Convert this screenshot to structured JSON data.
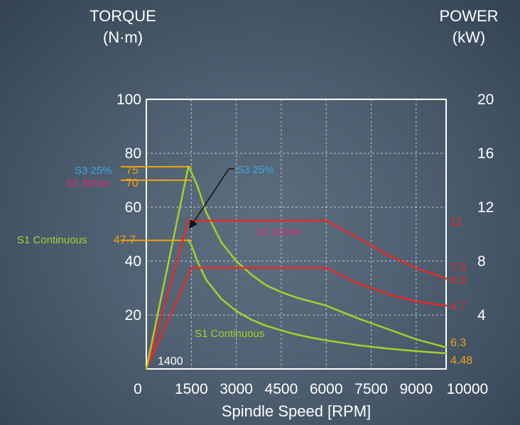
{
  "colors": {
    "green": "#a6d12a",
    "red": "#e62a2a",
    "orange": "#f2a10c",
    "blue": "#3aa6e6",
    "magenta": "#d72a78",
    "white": "#ffffff",
    "black": "#111111"
  },
  "chart_data": {
    "type": "line",
    "title": "",
    "xlabel": "Spindle Speed [RPM]",
    "ylabel": "TORQUE\n(N·m)",
    "y2label": "POWER\n(kW)",
    "xlim": [
      0,
      10000
    ],
    "ylim": [
      0,
      100
    ],
    "y2lim": [
      0,
      20
    ],
    "grid": true,
    "x_tick_values": [
      0,
      1500,
      3000,
      4500,
      6000,
      7500,
      9000,
      10000
    ],
    "x_tick_labels": [
      "0",
      "1500",
      "3000",
      "4500",
      "6000",
      "7500",
      "9000",
      "10000"
    ],
    "y_tick_values": [
      20,
      40,
      60,
      80,
      100
    ],
    "y_tick_labels": [
      "20",
      "40",
      "60",
      "80",
      "100"
    ],
    "y2_tick_values": [
      4,
      8,
      12,
      16,
      20
    ],
    "y2_tick_labels": [
      "4",
      "8",
      "12",
      "16",
      "20"
    ],
    "series": [
      {
        "color": "#a6d12a",
        "axis": "left",
        "x": [
          1400,
          1500,
          1700,
          2000,
          2500,
          3000,
          3500,
          4000,
          4500,
          5000,
          5500,
          6000,
          7000,
          8000,
          9000,
          10000
        ],
        "y": [
          75,
          73,
          68,
          58,
          47,
          40,
          35,
          31,
          28.5,
          26.5,
          25,
          23.5,
          19,
          15,
          11,
          8
        ]
      },
      {
        "color": "#a6d12a",
        "axis": "left",
        "x": [
          1400,
          1500,
          1700,
          2000,
          2500,
          3000,
          3500,
          4000,
          4500,
          5000,
          5500,
          6000,
          7000,
          8000,
          9000,
          10000
        ],
        "y": [
          47.7,
          46,
          40,
          33,
          26,
          21.5,
          18.3,
          16,
          14.3,
          12.8,
          11.6,
          10.6,
          8.9,
          7.6,
          6.6,
          5.8
        ]
      },
      {
        "color": "#e62a2a",
        "axis": "right",
        "x": [
          0,
          1400,
          1500,
          6000,
          7000,
          8000,
          9000,
          10000
        ],
        "y": [
          0,
          11,
          11,
          11,
          9.8,
          8.5,
          7.5,
          6.7
        ]
      },
      {
        "color": "#e62a2a",
        "axis": "right",
        "x": [
          0,
          1500,
          6000,
          7000,
          8000,
          9000,
          10000
        ],
        "y": [
          0,
          7.5,
          7.5,
          6.4,
          5.6,
          5.0,
          4.7
        ]
      }
    ],
    "annotations": {
      "s3_label": "S3 25%",
      "s2_label": "S2 30min",
      "s1_label": "S1 Continuous",
      "s3_left_label": "S3 25%",
      "s2_left_label": "S2 30min",
      "s1_left_label": "S1 Continuous",
      "torque_75": "75",
      "torque_70": "70",
      "torque_477": "47.7",
      "power_11": "11",
      "power_75": "7.5",
      "power_60": "6.0",
      "power_47": "4.7",
      "power_63": "6.3",
      "power_448": "4.48",
      "speed_1400": "1400"
    }
  }
}
